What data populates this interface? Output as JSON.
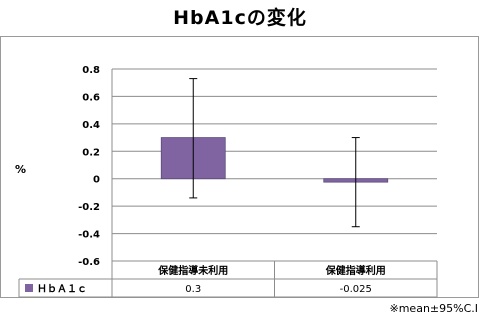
{
  "chart_data": {
    "type": "bar",
    "title": "HbA1cの変化",
    "ylabel": "%",
    "categories": [
      "保健指導未利用",
      "保健指導利用"
    ],
    "series": [
      {
        "name": "ＨｂＡ１ｃ",
        "values": [
          0.3,
          -0.025
        ],
        "display_values": [
          "0.3",
          "-0.025"
        ],
        "ci_upper": [
          0.73,
          0.3
        ],
        "ci_lower": [
          -0.14,
          -0.35
        ],
        "color": "#8064a2"
      }
    ],
    "ylim": [
      -0.6,
      0.8
    ],
    "yticks": [
      "0.8",
      "0.6",
      "0.4",
      "0.2",
      "0",
      "-0.2",
      "-0.4",
      "-0.6"
    ],
    "grid": true,
    "data_table": true,
    "footnote": "※mean±95%C.I"
  }
}
